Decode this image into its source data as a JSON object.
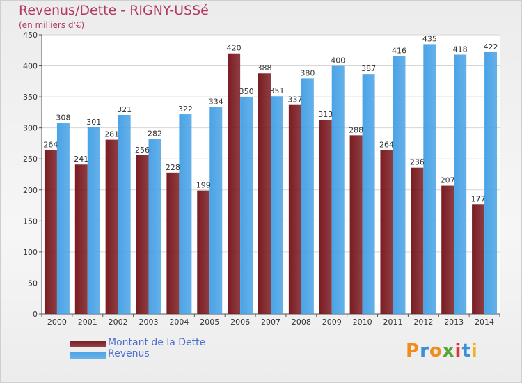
{
  "header": {
    "title": "Revenus/Dette - RIGNY-USSé",
    "subtitle": "(en milliers d'€)"
  },
  "chart_data": {
    "type": "bar",
    "title": "Revenus/Dette - RIGNY-USSé",
    "subtitle": "(en milliers d'€)",
    "xlabel": "",
    "ylabel": "",
    "categories": [
      "2000",
      "2001",
      "2002",
      "2003",
      "2004",
      "2005",
      "2006",
      "2007",
      "2008",
      "2009",
      "2010",
      "2011",
      "2012",
      "2013",
      "2014"
    ],
    "series": [
      {
        "name": "Montant de la Dette",
        "color": "#7a1c22",
        "values": [
          264,
          241,
          281,
          256,
          228,
          199,
          420,
          388,
          337,
          313,
          288,
          264,
          236,
          207,
          177
        ]
      },
      {
        "name": "Revenus",
        "color": "#4aa3e6",
        "values": [
          308,
          301,
          321,
          282,
          322,
          334,
          350,
          351,
          380,
          400,
          387,
          416,
          435,
          418,
          422
        ]
      }
    ],
    "ylim": [
      0,
      450
    ],
    "yticks": [
      0,
      50,
      100,
      150,
      200,
      250,
      300,
      350,
      400,
      450
    ],
    "grid": true,
    "legend_position": "bottom-left"
  },
  "legend": {
    "items": [
      {
        "label": "Montant de la Dette",
        "color": "#7a1c22"
      },
      {
        "label": "Revenus",
        "color": "#4aa3e6"
      }
    ]
  },
  "logo": {
    "letters": [
      "P",
      "r",
      "o",
      "x",
      "i",
      "t",
      "i"
    ],
    "colors": [
      "#f28c1c",
      "#3a8fd6",
      "#f28c1c",
      "#5aa33a",
      "#e0312f",
      "#3a8fd6",
      "#f2b01c"
    ]
  }
}
